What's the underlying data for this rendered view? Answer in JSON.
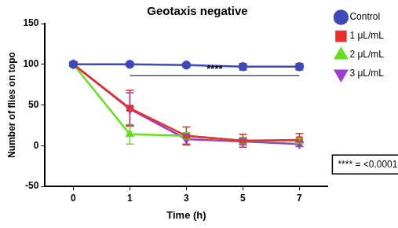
{
  "chart_data": {
    "type": "line",
    "title": "Geotaxis negative",
    "x_label": "Time (h)",
    "y_label": "Number of flies on topo",
    "categories": [
      "0",
      "1",
      "3",
      "5",
      "7"
    ],
    "series": [
      {
        "name": "Control",
        "color": "#3f48b8",
        "marker": "circle",
        "values": [
          100,
          100,
          99,
          97,
          97
        ],
        "errors": [
          0,
          1,
          2,
          4,
          4
        ]
      },
      {
        "name": "1 μL/mL",
        "color": "#e8302a",
        "marker": "square",
        "values": [
          100,
          46,
          12,
          6,
          7
        ],
        "errors": [
          0,
          22,
          11,
          8,
          8
        ]
      },
      {
        "name": "2 μL/mL",
        "color": "#66dd22",
        "marker": "triangle",
        "values": [
          100,
          14,
          12,
          6,
          6
        ],
        "errors": [
          0,
          12,
          4,
          4,
          3
        ]
      },
      {
        "name": "3 μL/mL",
        "color": "#9a3fd0",
        "marker": "triangle_down",
        "values": [
          100,
          45,
          8,
          5,
          2
        ],
        "errors": [
          0,
          20,
          6,
          4,
          3
        ]
      }
    ],
    "ylim": [
      -50,
      150
    ],
    "yticks": [
      -50,
      0,
      50,
      100,
      150
    ],
    "grid": false,
    "legend": "right",
    "annotations": [
      {
        "text": "****",
        "x_from": "1",
        "x_to": "7",
        "y": 86
      }
    ],
    "note": "**** = <0.0001"
  }
}
